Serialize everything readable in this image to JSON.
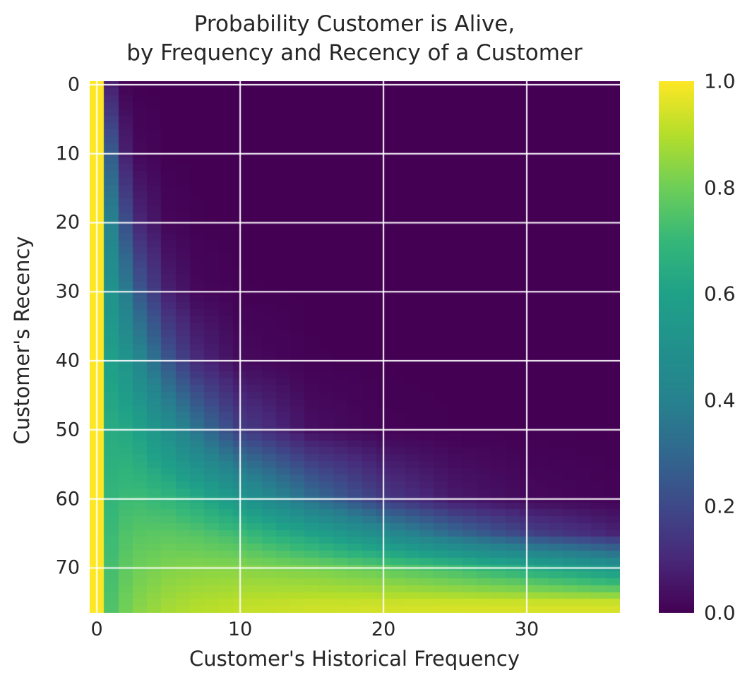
{
  "figure": {
    "title_line1": "Probability Customer is Alive,",
    "title_line2": "by Frequency and Recency of a Customer",
    "text_color": "#262626",
    "background": "#ffffff"
  },
  "chart_data": {
    "type": "heatmap",
    "title": "Probability Customer is Alive,\nby Frequency and Recency of a Customer",
    "xlabel": "Customer's Historical Frequency",
    "ylabel": "Customer's Recency",
    "x_ticks": [
      0,
      10,
      20,
      30
    ],
    "y_ticks": [
      0,
      10,
      20,
      30,
      40,
      50,
      60,
      70
    ],
    "colorbar_ticks": [
      "1.0",
      "0.8",
      "0.6",
      "0.4",
      "0.2",
      "0.0"
    ],
    "x_extent": [
      -0.5,
      36.5
    ],
    "y_extent": [
      -0.5,
      76.5
    ],
    "n_cols": 37,
    "n_rows": 77,
    "zlim": [
      0,
      1
    ],
    "y_axis_inverted_origin_top": true,
    "grid_on": true,
    "grid_color": "#ffffff",
    "legend_position": "colorbar-right",
    "colormap": "viridis",
    "colormap_stops": [
      "#440154",
      "#482878",
      "#3e4989",
      "#31688e",
      "#26828e",
      "#21918c",
      "#1fa188",
      "#35b779",
      "#6ece58",
      "#b5de2b",
      "#fde725"
    ],
    "values_grid": {
      "x_samples": [
        0,
        1,
        2,
        3,
        5,
        7,
        10,
        15,
        20,
        25,
        30,
        37
      ],
      "y_samples": [
        0,
        10,
        20,
        30,
        40,
        50,
        60,
        65,
        70,
        75,
        77
      ],
      "values": [
        [
          1.0,
          0.075,
          0.006,
          0.0,
          0.0,
          0.0,
          0.0,
          0.0,
          0.0,
          0.0,
          0.0,
          0.0
        ],
        [
          1.0,
          0.259,
          0.08,
          0.019,
          0.001,
          0.0,
          0.0,
          0.0,
          0.0,
          0.0,
          0.0,
          0.0
        ],
        [
          1.0,
          0.403,
          0.22,
          0.097,
          0.014,
          0.002,
          0.0,
          0.0,
          0.0,
          0.0,
          0.0,
          0.0
        ],
        [
          1.0,
          0.508,
          0.379,
          0.247,
          0.077,
          0.019,
          0.002,
          0.0,
          0.0,
          0.0,
          0.0,
          0.0
        ],
        [
          1.0,
          0.587,
          0.519,
          0.429,
          0.241,
          0.108,
          0.025,
          0.002,
          0.0,
          0.0,
          0.0,
          0.0
        ],
        [
          1.0,
          0.646,
          0.63,
          0.592,
          0.479,
          0.344,
          0.17,
          0.036,
          0.006,
          0.001,
          0.0,
          0.0
        ],
        [
          1.0,
          0.693,
          0.713,
          0.715,
          0.69,
          0.641,
          0.536,
          0.326,
          0.156,
          0.062,
          0.022,
          0.005
        ],
        [
          1.0,
          0.712,
          0.746,
          0.762,
          0.767,
          0.754,
          0.713,
          0.602,
          0.455,
          0.304,
          0.181,
          0.075
        ],
        [
          1.0,
          0.729,
          0.775,
          0.8,
          0.826,
          0.835,
          0.835,
          0.814,
          0.774,
          0.717,
          0.644,
          0.52
        ],
        [
          1.0,
          0.745,
          0.799,
          0.832,
          0.87,
          0.89,
          0.908,
          0.922,
          0.927,
          0.929,
          0.928,
          0.924
        ],
        [
          1.0,
          0.751,
          0.808,
          0.843,
          0.884,
          0.907,
          0.927,
          0.945,
          0.955,
          0.961,
          0.965,
          0.969
        ]
      ]
    }
  }
}
